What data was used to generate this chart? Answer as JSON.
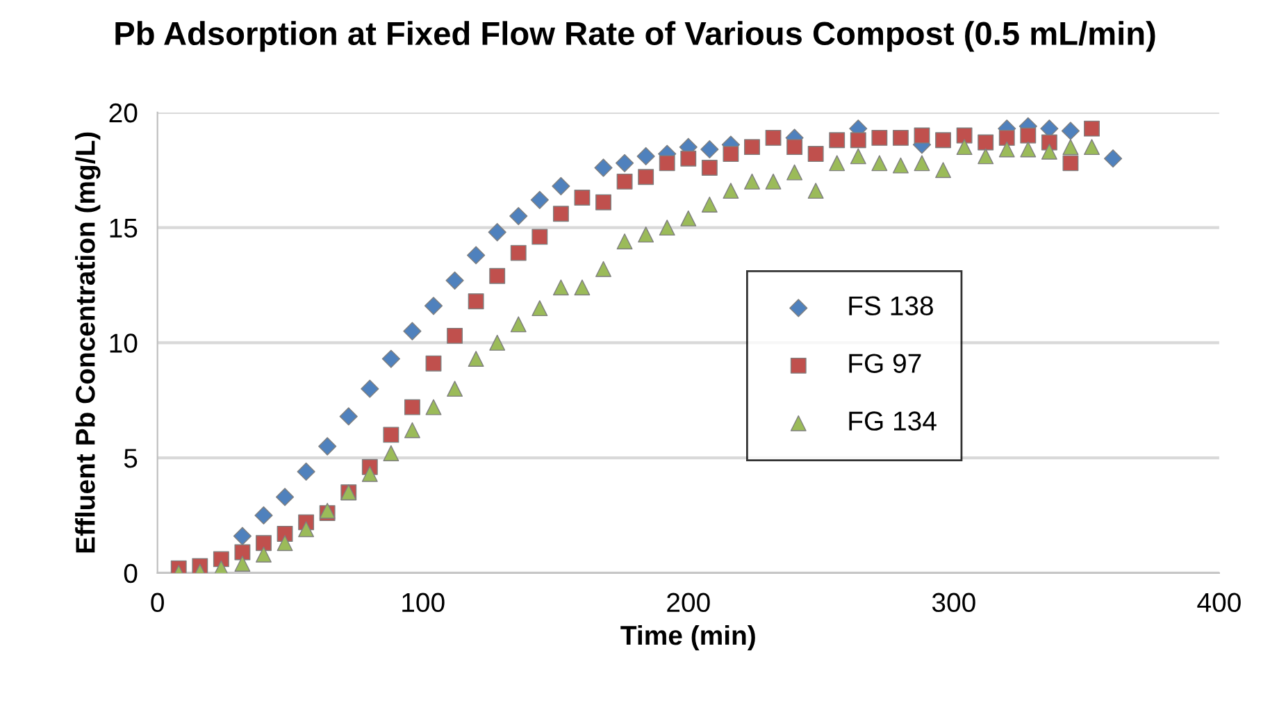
{
  "chart_data": {
    "type": "scatter",
    "title": "Pb Adsorption at Fixed Flow Rate of Various Compost (0.5 mL/min)",
    "xlabel": "Time (min)",
    "ylabel": "Effluent Pb Concentration (mg/L)",
    "xlim": [
      0,
      400
    ],
    "xticks": [
      0,
      100,
      200,
      300,
      400
    ],
    "ylim": [
      0,
      20
    ],
    "yticks": [
      0,
      5,
      10,
      15,
      20
    ],
    "grid": "y",
    "legend": "right",
    "series": [
      {
        "name": "FS 138",
        "color": "#4f81bd",
        "marker": "diamond",
        "x": [
          32,
          40,
          48,
          56,
          64,
          72,
          80,
          88,
          96,
          104,
          112,
          120,
          128,
          136,
          144,
          152,
          168,
          176,
          184,
          192,
          200,
          208,
          216,
          240,
          264,
          288,
          320,
          328,
          336,
          344,
          360
        ],
        "values": [
          1.6,
          2.5,
          3.3,
          4.4,
          5.5,
          6.8,
          8.0,
          9.3,
          10.5,
          11.6,
          12.7,
          13.8,
          14.8,
          15.5,
          16.2,
          16.8,
          17.6,
          17.8,
          18.1,
          18.2,
          18.5,
          18.4,
          18.6,
          18.9,
          19.3,
          18.6,
          19.3,
          19.4,
          19.3,
          19.2,
          18.0
        ]
      },
      {
        "name": "FG 97",
        "color": "#c0504d",
        "marker": "square",
        "x": [
          8,
          16,
          24,
          32,
          40,
          48,
          56,
          64,
          72,
          80,
          88,
          96,
          104,
          112,
          120,
          128,
          136,
          144,
          152,
          160,
          168,
          176,
          184,
          192,
          200,
          208,
          216,
          224,
          232,
          240,
          248,
          256,
          264,
          272,
          280,
          288,
          296,
          304,
          312,
          320,
          328,
          336,
          344,
          352
        ],
        "values": [
          0.2,
          0.3,
          0.6,
          0.9,
          1.3,
          1.7,
          2.2,
          2.6,
          3.5,
          4.6,
          6.0,
          7.2,
          9.1,
          10.3,
          11.8,
          12.9,
          13.9,
          14.6,
          15.6,
          16.3,
          16.1,
          17.0,
          17.2,
          17.8,
          18.0,
          17.6,
          18.2,
          18.5,
          18.9,
          18.5,
          18.2,
          18.8,
          18.8,
          18.9,
          18.9,
          19.0,
          18.8,
          19.0,
          18.7,
          18.9,
          19.0,
          18.7,
          17.8,
          19.3
        ]
      },
      {
        "name": "FG 134",
        "color": "#9bbb59",
        "marker": "triangle",
        "x": [
          8,
          16,
          24,
          32,
          40,
          48,
          56,
          64,
          72,
          80,
          88,
          96,
          104,
          112,
          120,
          128,
          136,
          144,
          152,
          160,
          168,
          176,
          184,
          192,
          200,
          208,
          216,
          224,
          232,
          240,
          248,
          256,
          264,
          272,
          280,
          288,
          296,
          304,
          312,
          320,
          328,
          336,
          344,
          352
        ],
        "values": [
          0.0,
          0.05,
          0.2,
          0.4,
          0.8,
          1.3,
          1.9,
          2.7,
          3.5,
          4.3,
          5.2,
          6.2,
          7.2,
          8.0,
          9.3,
          10.0,
          10.8,
          11.5,
          12.4,
          12.4,
          13.2,
          14.4,
          14.7,
          15.0,
          15.4,
          16.0,
          16.6,
          17.0,
          17.0,
          17.4,
          16.6,
          17.8,
          18.1,
          17.8,
          17.7,
          17.8,
          17.5,
          18.5,
          18.1,
          18.4,
          18.4,
          18.3,
          18.5,
          18.5
        ]
      }
    ]
  }
}
